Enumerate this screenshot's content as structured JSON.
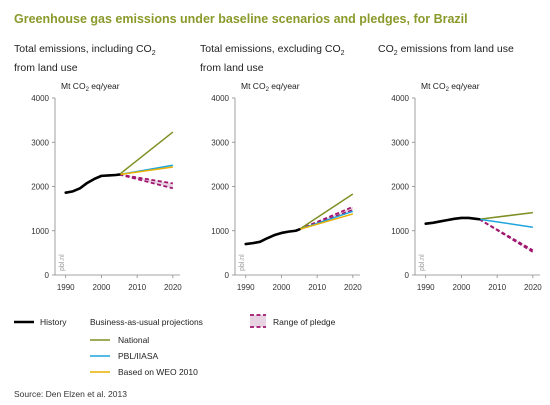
{
  "title": "Greenhouse gas emissions under baseline scenarios and pledges, for Brazil",
  "source": "Source: Den Elzen et al. 2013",
  "watermark": "pbl.nl",
  "colors": {
    "history": "#000000",
    "national": "#7f8f24",
    "pbl": "#1ea4dc",
    "weo": "#e8b000",
    "pledge": "#a0166e",
    "title": "#8a9a2b"
  },
  "legend": {
    "history": "History",
    "bau_header": "Business-as-usual projections",
    "national": "National",
    "pbl": "PBL/IIASA",
    "weo": "Based on WEO 2010",
    "pledge": "Range of pledge"
  },
  "panels": [
    {
      "subtitle": "Total emissions, including CO2 from land use",
      "unit": "Mt CO2 eq/year"
    },
    {
      "subtitle": "Total emissions, excluding CO2 from land use",
      "unit": "Mt CO2 eq/year"
    },
    {
      "subtitle": "CO2 emissions from land use",
      "unit": "Mt CO2 eq/year"
    }
  ],
  "chart_data": [
    {
      "type": "line",
      "title": "Total emissions, including CO2 from land use",
      "ylabel": "Mt CO2 eq/year",
      "xlim": [
        1987,
        2022
      ],
      "ylim": [
        0,
        4000
      ],
      "xticks": [
        1990,
        2000,
        2010,
        2020
      ],
      "yticks": [
        0,
        1000,
        2000,
        3000,
        4000
      ],
      "history": {
        "x": [
          1990,
          1992,
          1994,
          1996,
          1998,
          2000,
          2002,
          2004,
          2005
        ],
        "y": [
          1860,
          1890,
          1960,
          2080,
          2170,
          2240,
          2250,
          2260,
          2270
        ]
      },
      "series": [
        {
          "name": "National",
          "x": [
            2005,
            2020
          ],
          "y": [
            2270,
            3230
          ]
        },
        {
          "name": "PBL/IIASA",
          "x": [
            2005,
            2020
          ],
          "y": [
            2270,
            2480
          ]
        },
        {
          "name": "Based on WEO 2010",
          "x": [
            2005,
            2020
          ],
          "y": [
            2270,
            2440
          ]
        }
      ],
      "pledge": {
        "x": [
          2005,
          2020
        ],
        "upper": [
          2270,
          2070
        ],
        "lower": [
          2270,
          1960
        ]
      }
    },
    {
      "type": "line",
      "title": "Total emissions, excluding CO2 from land use",
      "ylabel": "Mt CO2 eq/year",
      "xlim": [
        1987,
        2022
      ],
      "ylim": [
        0,
        4000
      ],
      "xticks": [
        1990,
        2000,
        2010,
        2020
      ],
      "yticks": [
        0,
        1000,
        2000,
        3000,
        4000
      ],
      "history": {
        "x": [
          1990,
          1992,
          1994,
          1996,
          1998,
          2000,
          2002,
          2004,
          2005
        ],
        "y": [
          700,
          720,
          750,
          830,
          900,
          950,
          980,
          1000,
          1030
        ]
      },
      "series": [
        {
          "name": "National",
          "x": [
            2005,
            2020
          ],
          "y": [
            1030,
            1830
          ]
        },
        {
          "name": "PBL/IIASA",
          "x": [
            2005,
            2020
          ],
          "y": [
            1030,
            1440
          ]
        },
        {
          "name": "Based on WEO 2010",
          "x": [
            2005,
            2020
          ],
          "y": [
            1030,
            1380
          ]
        }
      ],
      "pledge": {
        "x": [
          2005,
          2020
        ],
        "upper": [
          1030,
          1540
        ],
        "lower": [
          1030,
          1470
        ]
      }
    },
    {
      "type": "line",
      "title": "CO2 emissions from land use",
      "ylabel": "Mt CO2 eq/year",
      "xlim": [
        1987,
        2022
      ],
      "ylim": [
        0,
        4000
      ],
      "xticks": [
        1990,
        2000,
        2010,
        2020
      ],
      "yticks": [
        0,
        1000,
        2000,
        3000,
        4000
      ],
      "history": {
        "x": [
          1990,
          1992,
          1994,
          1996,
          1998,
          2000,
          2002,
          2004,
          2005
        ],
        "y": [
          1160,
          1180,
          1210,
          1240,
          1270,
          1290,
          1290,
          1270,
          1260
        ]
      },
      "series": [
        {
          "name": "National",
          "x": [
            2005,
            2020
          ],
          "y": [
            1260,
            1410
          ]
        },
        {
          "name": "PBL/IIASA",
          "x": [
            2005,
            2020
          ],
          "y": [
            1260,
            1080
          ]
        }
      ],
      "pledge": {
        "x": [
          2005,
          2020
        ],
        "upper": [
          1260,
          560
        ],
        "lower": [
          1260,
          520
        ]
      }
    }
  ]
}
